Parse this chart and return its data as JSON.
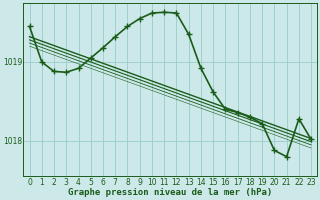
{
  "xlabel": "Graphe pression niveau de la mer (hPa)",
  "background_color": "#cce8e8",
  "plot_bg_color": "#cce8e8",
  "grid_color": "#99cccc",
  "line_color": "#1a5c1a",
  "text_color": "#1a5c1a",
  "yticks": [
    1018,
    1019
  ],
  "ylim": [
    1017.55,
    1019.75
  ],
  "xlim": [
    -0.5,
    23.5
  ],
  "xticks": [
    0,
    1,
    2,
    3,
    4,
    5,
    6,
    7,
    8,
    9,
    10,
    11,
    12,
    13,
    14,
    15,
    16,
    17,
    18,
    19,
    20,
    21,
    22,
    23
  ],
  "parallel_lines": [
    {
      "y0": 1019.32,
      "y1": 1018.03,
      "lw": 1.0
    },
    {
      "y0": 1019.28,
      "y1": 1017.99,
      "lw": 0.8
    },
    {
      "y0": 1019.24,
      "y1": 1017.95,
      "lw": 0.6
    },
    {
      "y0": 1019.2,
      "y1": 1017.91,
      "lw": 0.4
    }
  ],
  "main_series_x": [
    0,
    1,
    2,
    3,
    4,
    5,
    6,
    7,
    8,
    9,
    10,
    11,
    12,
    13,
    14,
    15,
    16,
    17,
    18,
    19,
    20,
    21,
    22,
    23
  ],
  "main_series_y": [
    1019.45,
    1019.0,
    1018.88,
    1018.87,
    1018.92,
    1019.05,
    1019.18,
    1019.32,
    1019.45,
    1019.55,
    1019.62,
    1019.63,
    1019.62,
    1019.35,
    1018.92,
    1018.62,
    1018.4,
    1018.36,
    1018.3,
    1018.22,
    1017.88,
    1017.8,
    1018.28,
    1018.02
  ],
  "main_lw": 1.2,
  "marker": "+",
  "markersize": 4
}
